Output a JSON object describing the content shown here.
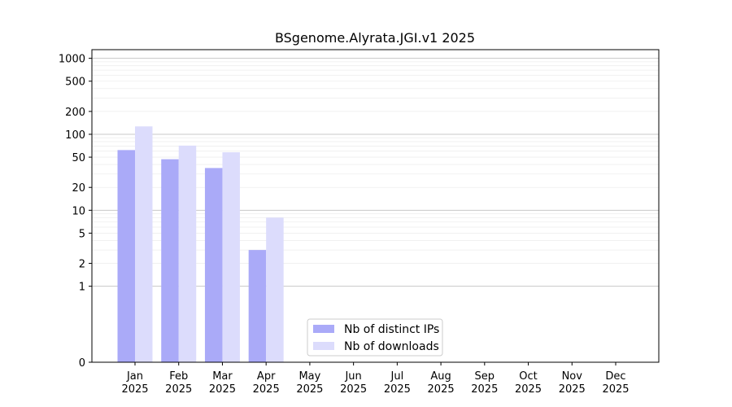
{
  "chart_data": {
    "type": "bar",
    "title": "BSgenome.Alyrata.JGI.v1 2025",
    "xlabel": "",
    "ylabel": "",
    "y_scale": "symlog",
    "categories": [
      [
        "Jan",
        "2025"
      ],
      [
        "Feb",
        "2025"
      ],
      [
        "Mar",
        "2025"
      ],
      [
        "Apr",
        "2025"
      ],
      [
        "May",
        "2025"
      ],
      [
        "Jun",
        "2025"
      ],
      [
        "Jul",
        "2025"
      ],
      [
        "Aug",
        "2025"
      ],
      [
        "Sep",
        "2025"
      ],
      [
        "Oct",
        "2025"
      ],
      [
        "Nov",
        "2025"
      ],
      [
        "Dec",
        "2025"
      ]
    ],
    "series": [
      {
        "name": "Nb of distinct IPs",
        "color": "#aaaaf8",
        "values": [
          62,
          47,
          36,
          3,
          0,
          0,
          0,
          0,
          0,
          0,
          0,
          0
        ]
      },
      {
        "name": "Nb of downloads",
        "color": "#dcdcfc",
        "values": [
          127,
          71,
          58,
          8,
          0,
          0,
          0,
          0,
          0,
          0,
          0,
          0
        ]
      }
    ],
    "yticks": [
      0,
      1,
      2,
      5,
      10,
      20,
      50,
      100,
      200,
      500,
      1000
    ],
    "ylim": [
      0,
      1300
    ],
    "grid": "horizontal",
    "legend_position": "lower-center"
  }
}
